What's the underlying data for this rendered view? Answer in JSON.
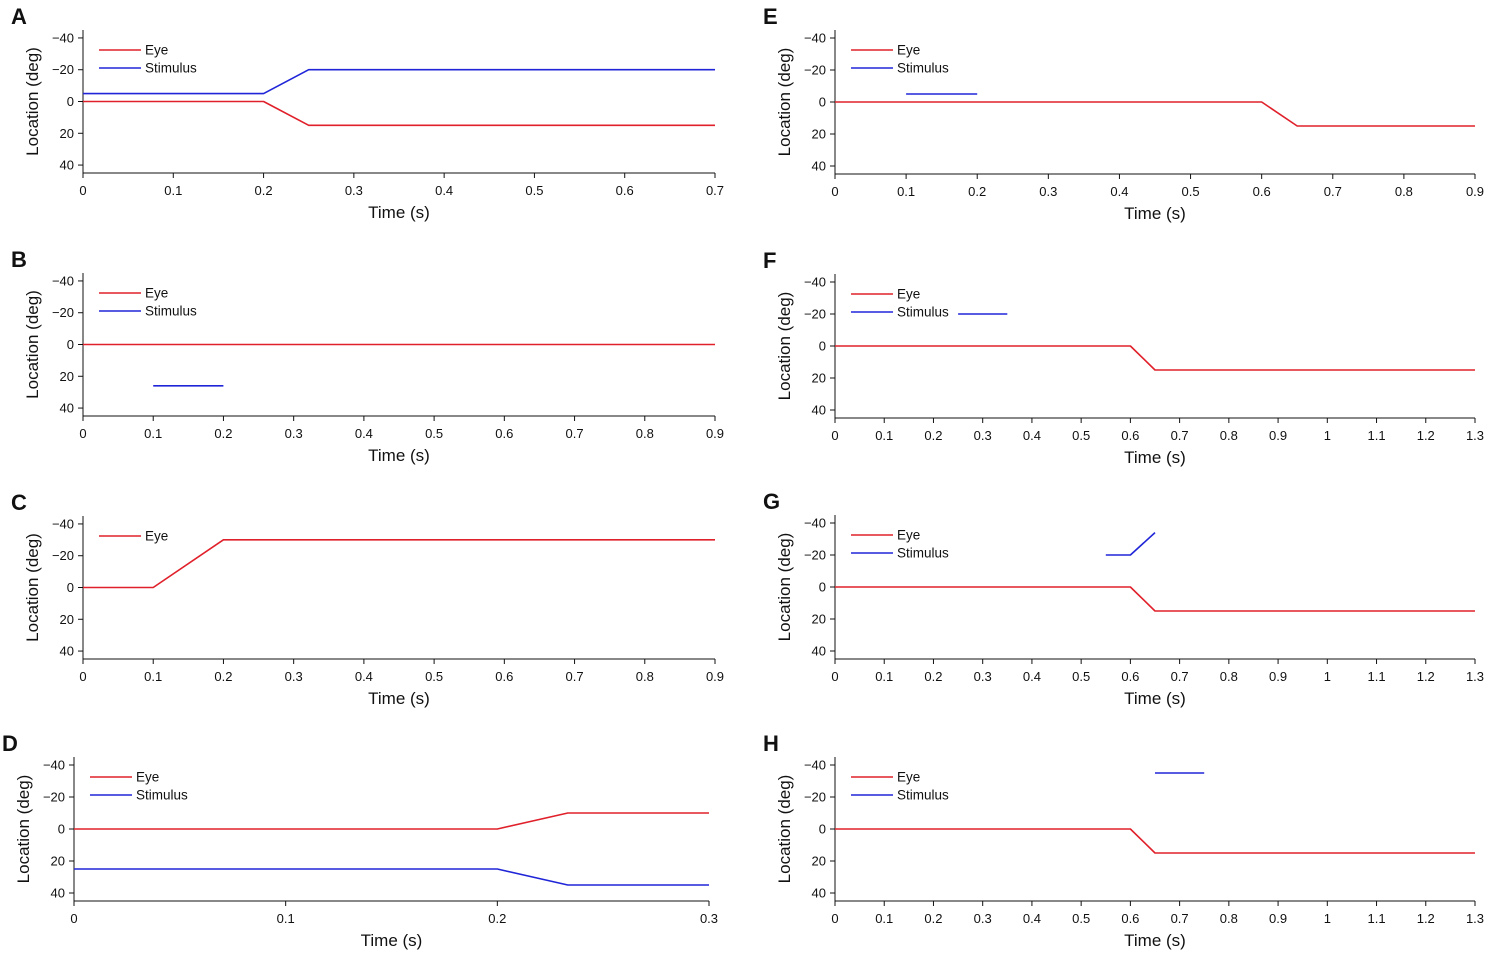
{
  "colors": {
    "eye": "#e0202a",
    "stimulus": "#2026d8",
    "axis": "#111111"
  },
  "chart_data": [
    {
      "panel": "A",
      "type": "line",
      "xlabel": "Time (s)",
      "ylabel": "Location (deg)",
      "xlim": [
        0,
        0.7
      ],
      "ylim": [
        -45,
        45
      ],
      "xticks": [
        0,
        0.1,
        0.2,
        0.3,
        0.4,
        0.5,
        0.6,
        0.7
      ],
      "yticks": [
        -40,
        -20,
        0,
        20,
        40
      ],
      "legend": [
        "Eye",
        "Stimulus"
      ],
      "series": [
        {
          "name": "Eye",
          "color_key": "eye",
          "segments": [
            [
              [
                0,
                0
              ],
              [
                0.2,
                0
              ],
              [
                0.25,
                15
              ],
              [
                0.7,
                15
              ]
            ]
          ]
        },
        {
          "name": "Stimulus",
          "color_key": "stimulus",
          "segments": [
            [
              [
                0,
                -5
              ],
              [
                0.2,
                -5
              ],
              [
                0.25,
                -20
              ],
              [
                0.7,
                -20
              ]
            ]
          ]
        }
      ]
    },
    {
      "panel": "B",
      "type": "line",
      "xlabel": "Time (s)",
      "ylabel": "Location (deg)",
      "xlim": [
        0,
        0.9
      ],
      "ylim": [
        -45,
        45
      ],
      "xticks": [
        0,
        0.1,
        0.2,
        0.3,
        0.4,
        0.5,
        0.6,
        0.7,
        0.8,
        0.9
      ],
      "yticks": [
        -40,
        -20,
        0,
        20,
        40
      ],
      "legend": [
        "Eye",
        "Stimulus"
      ],
      "series": [
        {
          "name": "Eye",
          "color_key": "eye",
          "segments": [
            [
              [
                0,
                0
              ],
              [
                0.9,
                0
              ]
            ]
          ]
        },
        {
          "name": "Stimulus",
          "color_key": "stimulus",
          "segments": [
            [
              [
                0.1,
                26
              ],
              [
                0.2,
                26
              ]
            ]
          ]
        }
      ]
    },
    {
      "panel": "C",
      "type": "line",
      "xlabel": "Time (s)",
      "ylabel": "Location (deg)",
      "xlim": [
        0,
        0.9
      ],
      "ylim": [
        -45,
        45
      ],
      "xticks": [
        0,
        0.1,
        0.2,
        0.3,
        0.4,
        0.5,
        0.6,
        0.7,
        0.8,
        0.9
      ],
      "yticks": [
        -40,
        -20,
        0,
        20,
        40
      ],
      "legend": [
        "Eye"
      ],
      "series": [
        {
          "name": "Eye",
          "color_key": "eye",
          "segments": [
            [
              [
                0,
                0
              ],
              [
                0.1,
                0
              ],
              [
                0.2,
                -30
              ],
              [
                0.9,
                -30
              ]
            ]
          ]
        }
      ]
    },
    {
      "panel": "D",
      "type": "line",
      "xlabel": "Time (s)",
      "ylabel": "Location (deg)",
      "xlim": [
        0,
        0.3
      ],
      "ylim": [
        -45,
        45
      ],
      "xticks": [
        0,
        0.1,
        0.2,
        0.3
      ],
      "yticks": [
        -40,
        -20,
        0,
        20,
        40
      ],
      "legend": [
        "Eye",
        "Stimulus"
      ],
      "series": [
        {
          "name": "Eye",
          "color_key": "eye",
          "segments": [
            [
              [
                0,
                0
              ],
              [
                0.2,
                0
              ],
              [
                0.2333,
                -10
              ],
              [
                0.3,
                -10
              ]
            ]
          ]
        },
        {
          "name": "Stimulus",
          "color_key": "stimulus",
          "segments": [
            [
              [
                0,
                25
              ],
              [
                0.2,
                25
              ],
              [
                0.2333,
                35
              ],
              [
                0.3,
                35
              ]
            ]
          ]
        }
      ]
    },
    {
      "panel": "E",
      "type": "line",
      "xlabel": "Time (s)",
      "ylabel": "Location (deg)",
      "xlim": [
        0,
        0.9
      ],
      "ylim": [
        -45,
        45
      ],
      "xticks": [
        0,
        0.1,
        0.2,
        0.3,
        0.4,
        0.5,
        0.6,
        0.7,
        0.8,
        0.9
      ],
      "yticks": [
        -40,
        -20,
        0,
        20,
        40
      ],
      "legend": [
        "Eye",
        "Stimulus"
      ],
      "series": [
        {
          "name": "Eye",
          "color_key": "eye",
          "segments": [
            [
              [
                0,
                0
              ],
              [
                0.6,
                0
              ],
              [
                0.65,
                15
              ],
              [
                0.9,
                15
              ]
            ]
          ]
        },
        {
          "name": "Stimulus",
          "color_key": "stimulus",
          "segments": [
            [
              [
                0.1,
                -5
              ],
              [
                0.2,
                -5
              ]
            ]
          ]
        }
      ]
    },
    {
      "panel": "F",
      "type": "line",
      "xlabel": "Time (s)",
      "ylabel": "Location (deg)",
      "xlim": [
        0,
        1.3
      ],
      "ylim": [
        -45,
        45
      ],
      "xticks": [
        0,
        0.1,
        0.2,
        0.3,
        0.4,
        0.5,
        0.6,
        0.7,
        0.8,
        0.9,
        1,
        1.1,
        1.2,
        1.3
      ],
      "yticks": [
        -40,
        -20,
        0,
        20,
        40
      ],
      "legend": [
        "Eye",
        "Stimulus"
      ],
      "series": [
        {
          "name": "Eye",
          "color_key": "eye",
          "segments": [
            [
              [
                0,
                0
              ],
              [
                0.6,
                0
              ],
              [
                0.65,
                15
              ],
              [
                1.3,
                15
              ]
            ]
          ]
        },
        {
          "name": "Stimulus",
          "color_key": "stimulus",
          "segments": [
            [
              [
                0.25,
                -20
              ],
              [
                0.35,
                -20
              ]
            ]
          ]
        }
      ]
    },
    {
      "panel": "G",
      "type": "line",
      "xlabel": "Time (s)",
      "ylabel": "Location (deg)",
      "xlim": [
        0,
        1.3
      ],
      "ylim": [
        -45,
        45
      ],
      "xticks": [
        0,
        0.1,
        0.2,
        0.3,
        0.4,
        0.5,
        0.6,
        0.7,
        0.8,
        0.9,
        1,
        1.1,
        1.2,
        1.3
      ],
      "yticks": [
        -40,
        -20,
        0,
        20,
        40
      ],
      "legend": [
        "Eye",
        "Stimulus"
      ],
      "series": [
        {
          "name": "Eye",
          "color_key": "eye",
          "segments": [
            [
              [
                0,
                0
              ],
              [
                0.6,
                0
              ],
              [
                0.65,
                15
              ],
              [
                1.3,
                15
              ]
            ]
          ]
        },
        {
          "name": "Stimulus",
          "color_key": "stimulus",
          "segments": [
            [
              [
                0.55,
                -20
              ],
              [
                0.6,
                -20
              ],
              [
                0.65,
                -34
              ]
            ]
          ]
        }
      ]
    },
    {
      "panel": "H",
      "type": "line",
      "xlabel": "Time (s)",
      "ylabel": "Location (deg)",
      "xlim": [
        0,
        1.3
      ],
      "ylim": [
        -45,
        45
      ],
      "xticks": [
        0,
        0.1,
        0.2,
        0.3,
        0.4,
        0.5,
        0.6,
        0.7,
        0.8,
        0.9,
        1,
        1.1,
        1.2,
        1.3
      ],
      "yticks": [
        -40,
        -20,
        0,
        20,
        40
      ],
      "legend": [
        "Eye",
        "Stimulus"
      ],
      "series": [
        {
          "name": "Eye",
          "color_key": "eye",
          "segments": [
            [
              [
                0,
                0
              ],
              [
                0.6,
                0
              ],
              [
                0.65,
                15
              ],
              [
                1.3,
                15
              ]
            ]
          ]
        },
        {
          "name": "Stimulus",
          "color_key": "stimulus",
          "segments": [
            [
              [
                0.65,
                -35
              ],
              [
                0.75,
                -35
              ]
            ]
          ]
        }
      ]
    }
  ]
}
